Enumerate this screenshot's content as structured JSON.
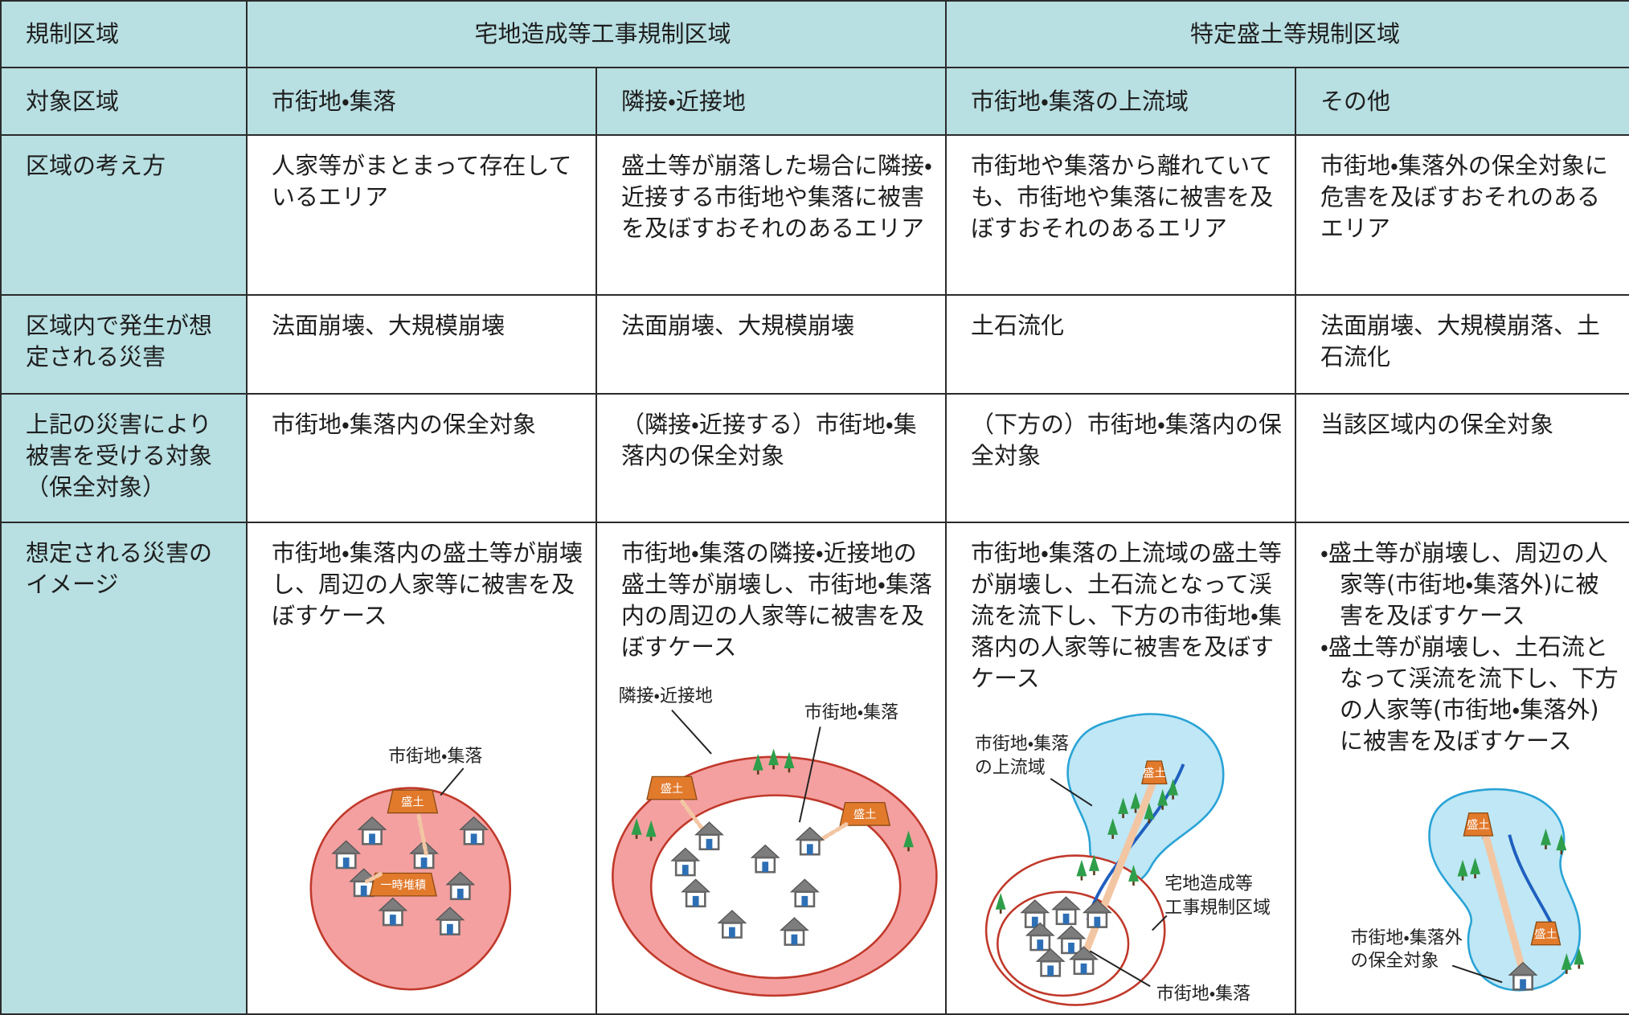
{
  "table": {
    "header": [
      "規制区域",
      "宅地造成等工事規制区域",
      "特定盛土等規制区域"
    ],
    "rows": [
      [
        "対象区域",
        "市街地・集落",
        "隣接・近接地",
        "市街地・集落の上流域",
        "その他"
      ],
      [
        "区域の考え方",
        "人家等がまとまって存在しているエリア",
        "盛土等が崩落した場合に隣接・近接する市街地や集落に被害を及ぼすおそれのあるエリア",
        "市街地や集落から離れていても、市街地や集落に被害を及ぼすおそれのあるエリア",
        "市街地・集落外の保全対象に危害を及ぼすおそれのあるエリア"
      ],
      [
        "区域内で発生が想定される災害",
        "法面崩壊、大規模崩壊",
        "法面崩壊、大規模崩壊",
        "土石流化",
        "法面崩壊、大規模崩落、土石流化"
      ],
      [
        "上記の災害により被害を受ける対象（保全対象）",
        "市街地・集落内の保全対象",
        "（隣接・近接する）市街地・集落内の保全対象",
        "（下方の）市街地・集落内の保全対象",
        "当該区域内の保全対象"
      ],
      [
        "想定される災害のイメージ",
        "市街地・集落内の盛土等が崩壊し、周辺の人家等に被害を及ぼすケース",
        "市街地・集落の隣接・近接地の盛土等が崩壊し、市街地・集落内の周辺の人家等に被害を及ぼすケース",
        "市街地・集落の上流域の盛土等が崩壊し、土石流となって渓流を流下し、下方の市街地・集落内の人家等に被害を及ぼすケース",
        [
          "・盛土等が崩壊し、周辺の人家等(市街地・集落外)に被害を及ぼすケース",
          "・盛土等が崩壊し、土石流となって渓流を流下し、下方の人家等(市街地・集落外)に被害を及ぼすケース"
        ]
      ]
    ]
  },
  "figures": [
    {
      "labels": [
        "市街地・集落",
        "盛土",
        "一時堆積"
      ]
    },
    {
      "labels": [
        "隣接・近接地",
        "市街地・集落",
        "盛土",
        "盛土"
      ]
    },
    {
      "labels": [
        "市街地・集落",
        "の上流域",
        "盛土",
        "宅地造成等",
        "工事規制区域",
        "市街地・集落"
      ]
    },
    {
      "labels": [
        "盛土",
        "盛土",
        "市街地・集落外",
        "の保全対象"
      ]
    }
  ]
}
